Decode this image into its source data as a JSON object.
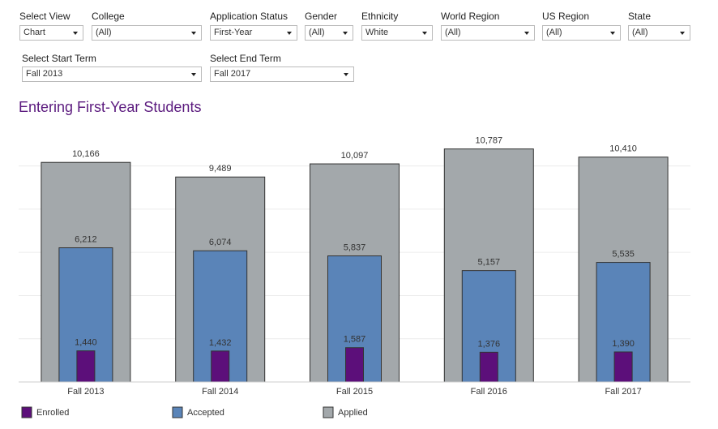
{
  "filters": [
    {
      "label": "Select View",
      "value": "Chart"
    },
    {
      "label": "College",
      "value": "(All)"
    },
    {
      "label": "Application Status",
      "value": "First-Year"
    },
    {
      "label": "Gender",
      "value": "(All)"
    },
    {
      "label": "Ethnicity",
      "value": "White"
    },
    {
      "label": "World Region",
      "value": "(All)"
    },
    {
      "label": "US Region",
      "value": "(All)"
    },
    {
      "label": "State",
      "value": "(All)"
    },
    {
      "label": "Select Start Term",
      "value": "Fall 2013"
    },
    {
      "label": "Select End Term",
      "value": "Fall 2017"
    }
  ],
  "chart_data": {
    "type": "bar",
    "title": "Entering First-Year Students",
    "categories": [
      "Fall 2013",
      "Fall 2014",
      "Fall 2015",
      "Fall 2016",
      "Fall 2017"
    ],
    "series": [
      {
        "name": "Enrolled",
        "color": "#5c0f7a",
        "values": [
          1440,
          1432,
          1587,
          1376,
          1390
        ],
        "value_labels": [
          "1,440",
          "1,432",
          "1,587",
          "1,376",
          "1,390"
        ]
      },
      {
        "name": "Accepted",
        "color": "#5a84b8",
        "values": [
          6212,
          6074,
          5837,
          5157,
          5535
        ],
        "value_labels": [
          "6,212",
          "6,074",
          "5,837",
          "5,157",
          "5,535"
        ]
      },
      {
        "name": "Applied",
        "color": "#a3a8ab",
        "values": [
          10166,
          9489,
          10097,
          10787,
          10410
        ],
        "value_labels": [
          "10,166",
          "9,489",
          "10,097",
          "10,787",
          "10,410"
        ]
      }
    ],
    "ylim": [
      0,
      11000
    ],
    "yticks": [
      0,
      2000,
      4000,
      6000,
      8000,
      10000
    ],
    "grid": true
  }
}
